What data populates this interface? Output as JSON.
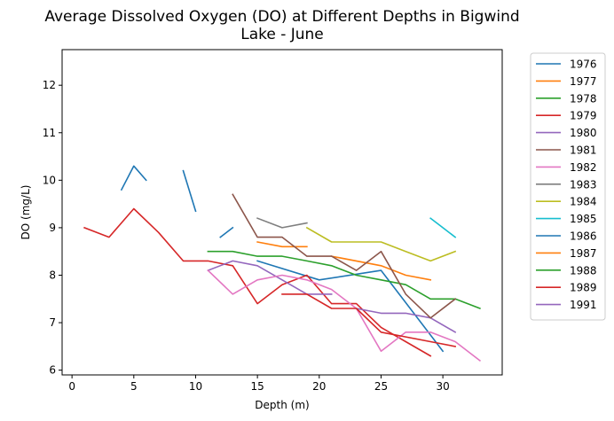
{
  "chart_data": {
    "type": "line",
    "title_lines": [
      "Average Dissolved Oxygen (DO) at Different Depths in Bigwind",
      "Lake - June"
    ],
    "xlabel": "Depth (m)",
    "ylabel": "DO (mg/L)",
    "xlim": [
      -0.8,
      34.8
    ],
    "ylim": [
      5.9,
      12.75
    ],
    "xticks": [
      0,
      5,
      10,
      15,
      20,
      25,
      30
    ],
    "yticks": [
      6,
      7,
      8,
      9,
      10,
      11,
      12
    ],
    "grid": false,
    "legend_position": "outside-right",
    "series": [
      {
        "name": "1976",
        "color": "#1f77b4",
        "segments": [
          [
            [
              4,
              9.8
            ],
            [
              5,
              10.3
            ],
            [
              6,
              10.0
            ]
          ],
          [
            [
              9,
              10.2
            ],
            [
              10,
              9.35
            ]
          ],
          [
            [
              15,
              8.3
            ],
            [
              20,
              7.9
            ],
            [
              25,
              8.1
            ],
            [
              30,
              6.4
            ]
          ]
        ]
      },
      {
        "name": "1977",
        "color": "#ff7f0e",
        "segments": [
          [
            [
              15,
              8.7
            ],
            [
              17,
              8.6
            ],
            [
              19,
              8.6
            ]
          ],
          [
            [
              21,
              8.4
            ],
            [
              25,
              8.2
            ],
            [
              27,
              8.0
            ],
            [
              29,
              7.9
            ]
          ]
        ]
      },
      {
        "name": "1978",
        "color": "#2ca02c",
        "segments": [
          [
            [
              11,
              8.5
            ],
            [
              13,
              8.5
            ],
            [
              15,
              8.4
            ],
            [
              17,
              8.4
            ],
            [
              19,
              8.3
            ],
            [
              21,
              8.2
            ],
            [
              23,
              8.0
            ],
            [
              25,
              7.9
            ],
            [
              27,
              7.8
            ],
            [
              29,
              7.5
            ],
            [
              31,
              7.5
            ],
            [
              33,
              7.3
            ]
          ]
        ]
      },
      {
        "name": "1979",
        "color": "#d62728",
        "segments": [
          [
            [
              1,
              9.0
            ],
            [
              3,
              8.8
            ],
            [
              5,
              9.4
            ],
            [
              7,
              8.9
            ],
            [
              9,
              8.3
            ],
            [
              11,
              8.3
            ],
            [
              13,
              8.2
            ],
            [
              15,
              7.4
            ],
            [
              17,
              7.8
            ],
            [
              19,
              8.0
            ],
            [
              21,
              7.4
            ],
            [
              23,
              7.4
            ],
            [
              25,
              6.9
            ],
            [
              27,
              6.6
            ],
            [
              29,
              6.3
            ]
          ]
        ]
      },
      {
        "name": "1980",
        "color": "#9467bd",
        "segments": [
          [
            [
              11,
              8.1
            ],
            [
              13,
              8.3
            ],
            [
              15,
              8.2
            ],
            [
              17,
              7.9
            ],
            [
              19,
              7.6
            ],
            [
              21,
              7.6
            ]
          ],
          [
            [
              23,
              7.3
            ],
            [
              25,
              7.2
            ],
            [
              27,
              7.2
            ],
            [
              29,
              7.1
            ],
            [
              31,
              6.8
            ]
          ]
        ]
      },
      {
        "name": "1981",
        "color": "#8c564b",
        "segments": [
          [
            [
              13,
              9.7
            ],
            [
              15,
              8.8
            ],
            [
              17,
              8.8
            ],
            [
              19,
              8.4
            ],
            [
              21,
              8.4
            ],
            [
              23,
              8.1
            ],
            [
              25,
              8.5
            ],
            [
              27,
              7.6
            ],
            [
              29,
              7.1
            ],
            [
              31,
              7.5
            ]
          ]
        ]
      },
      {
        "name": "1982",
        "color": "#e377c2",
        "segments": [
          [
            [
              11,
              8.1
            ],
            [
              13,
              7.6
            ],
            [
              15,
              7.9
            ],
            [
              17,
              8.0
            ],
            [
              19,
              7.9
            ],
            [
              21,
              7.7
            ],
            [
              23,
              7.3
            ],
            [
              25,
              6.4
            ],
            [
              27,
              6.8
            ],
            [
              29,
              6.8
            ],
            [
              31,
              6.6
            ],
            [
              33,
              6.2
            ]
          ]
        ]
      },
      {
        "name": "1983",
        "color": "#7f7f7f",
        "segments": [
          [
            [
              15,
              9.2
            ],
            [
              17,
              9.0
            ],
            [
              19,
              9.1
            ]
          ]
        ]
      },
      {
        "name": "1984",
        "color": "#bcbd22",
        "segments": [
          [
            [
              19,
              9.0
            ],
            [
              21,
              8.7
            ],
            [
              23,
              8.7
            ],
            [
              25,
              8.7
            ],
            [
              27,
              8.5
            ],
            [
              29,
              8.3
            ],
            [
              31,
              8.5
            ]
          ]
        ]
      },
      {
        "name": "1985",
        "color": "#17becf",
        "segments": [
          [
            [
              29,
              9.2
            ],
            [
              31,
              8.8
            ]
          ]
        ]
      },
      {
        "name": "1986",
        "color": "#1f77b4",
        "segments": [
          [
            [
              12,
              8.8
            ],
            [
              13,
              9.0
            ]
          ]
        ]
      },
      {
        "name": "1987",
        "color": "#ff7f0e",
        "segments": []
      },
      {
        "name": "1988",
        "color": "#2ca02c",
        "segments": []
      },
      {
        "name": "1989",
        "color": "#d62728",
        "segments": [
          [
            [
              17,
              7.6
            ],
            [
              19,
              7.6
            ],
            [
              21,
              7.3
            ],
            [
              23,
              7.3
            ],
            [
              25,
              6.8
            ],
            [
              27,
              6.7
            ],
            [
              29,
              6.6
            ],
            [
              31,
              6.5
            ]
          ]
        ]
      },
      {
        "name": "1991",
        "color": "#9467bd",
        "segments": []
      }
    ]
  }
}
